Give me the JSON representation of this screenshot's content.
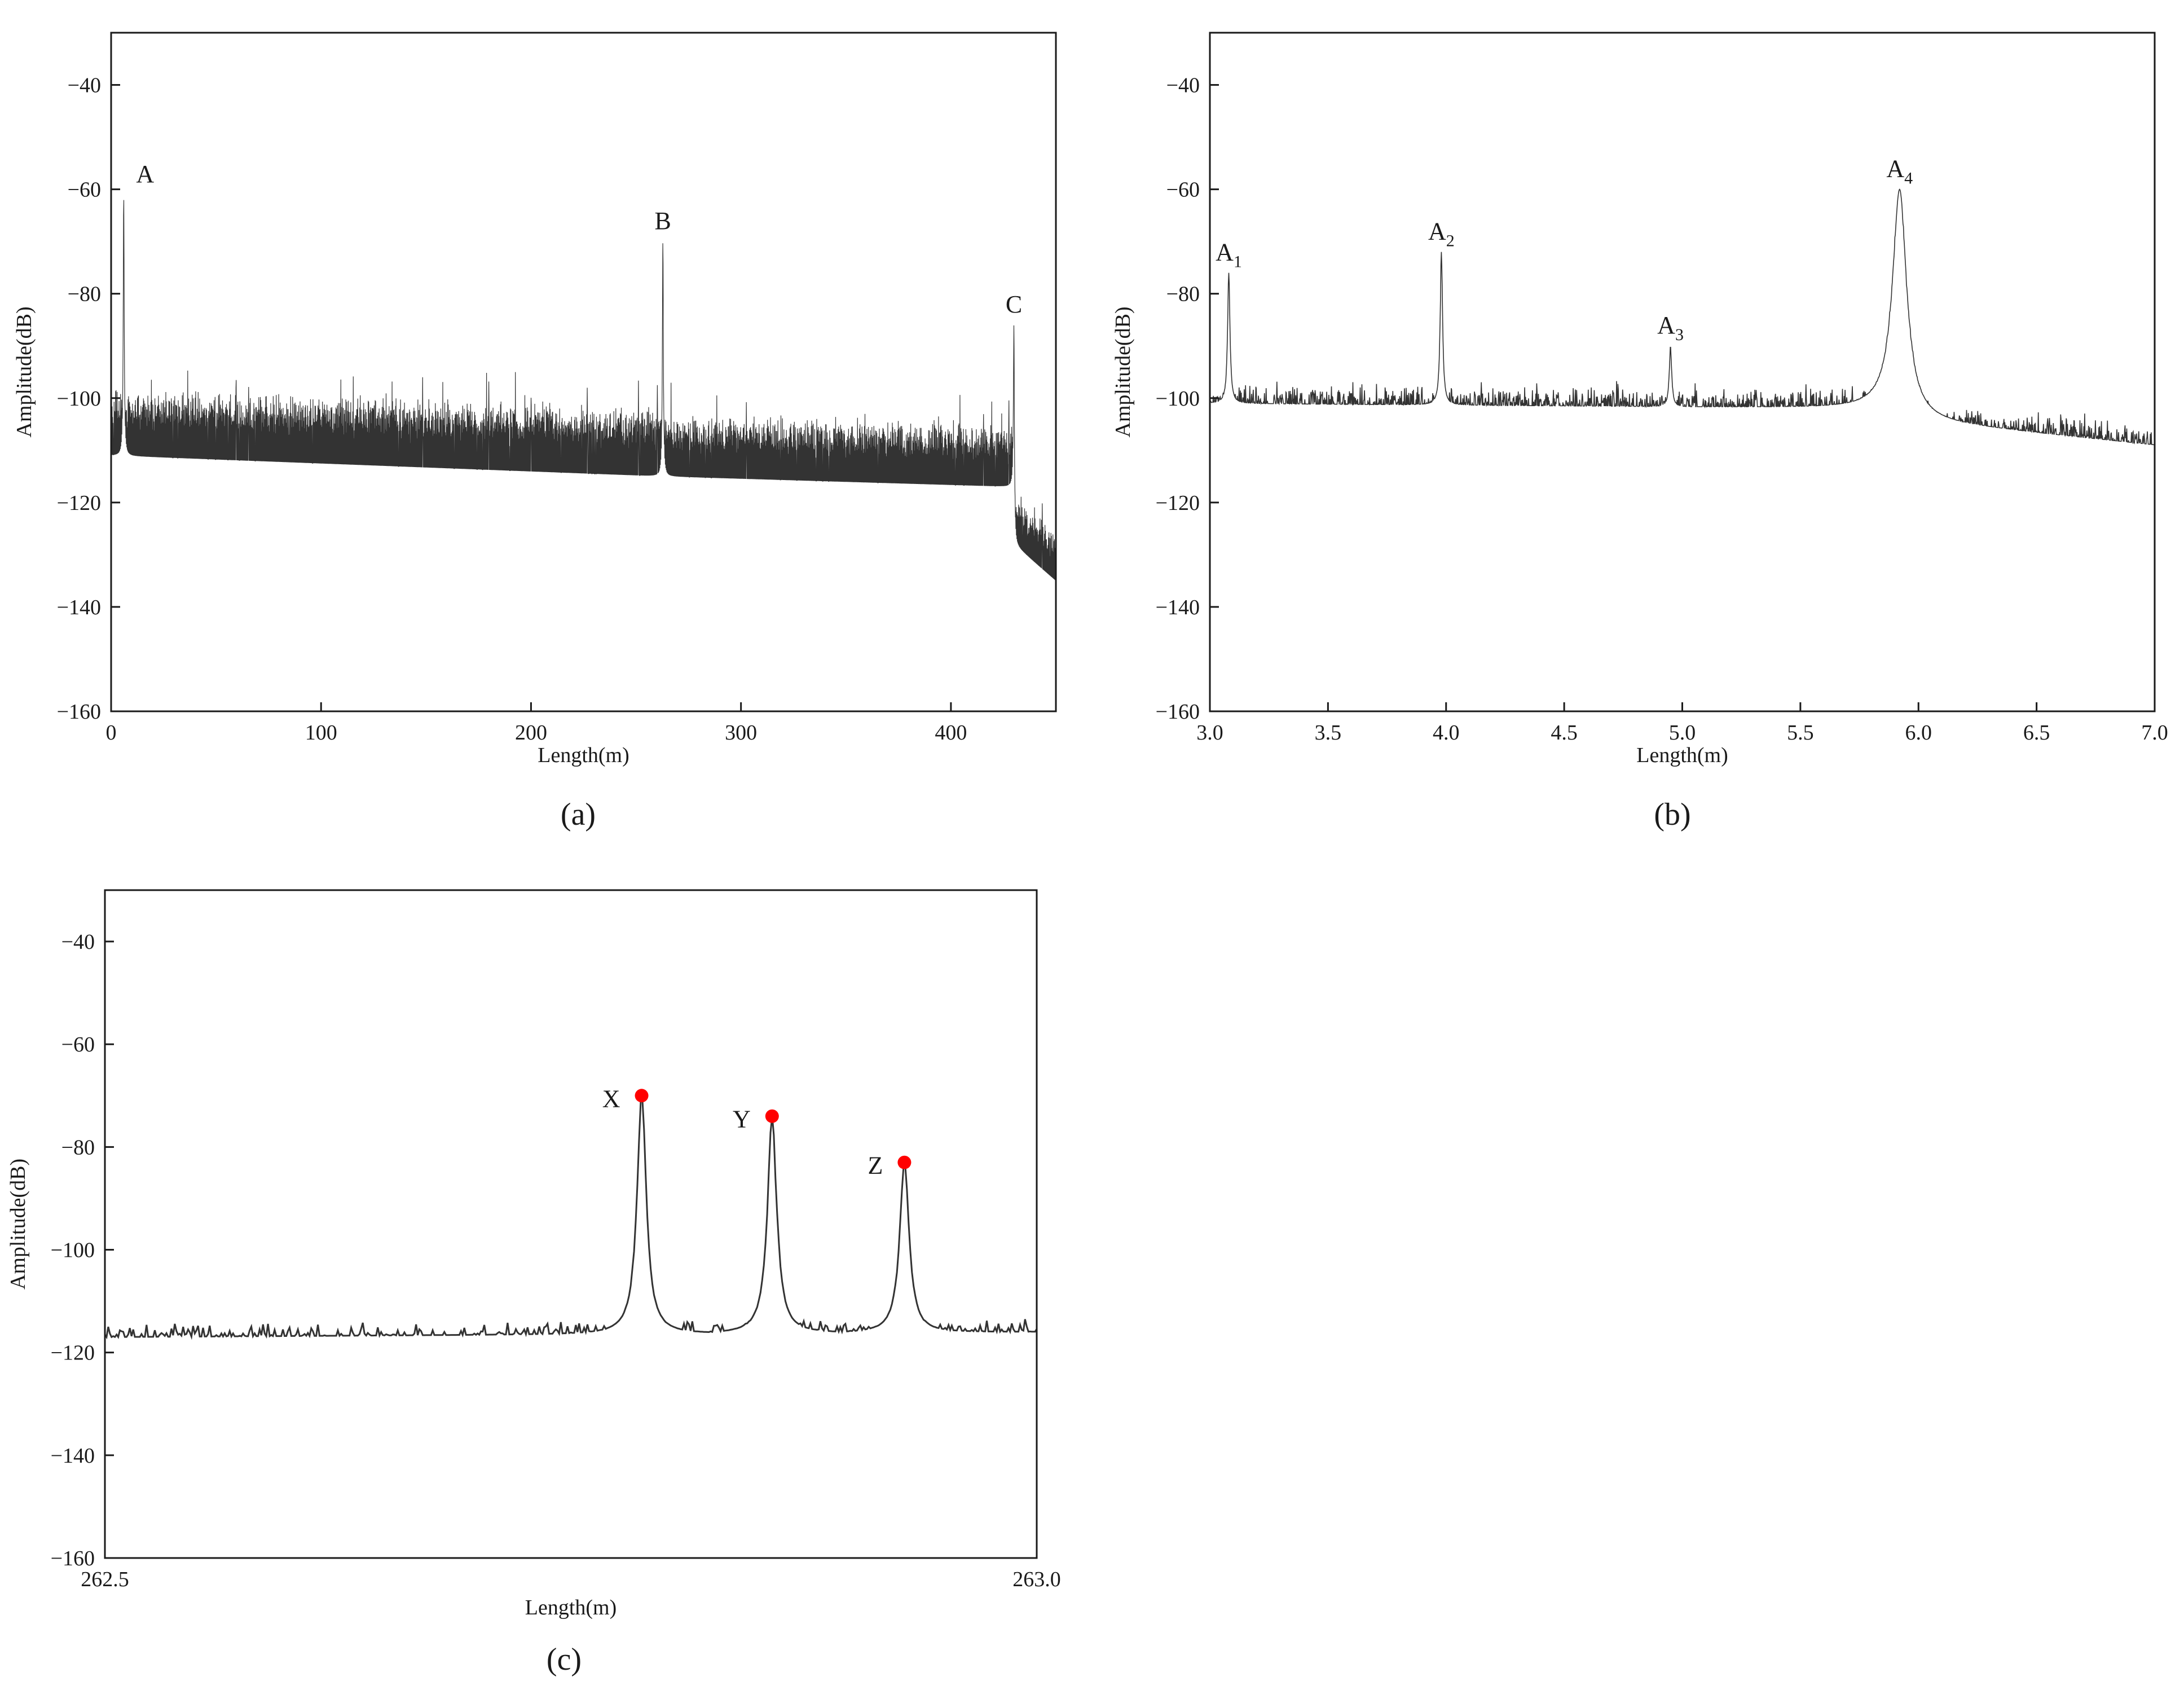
{
  "figure": {
    "panels": [
      {
        "id": "a",
        "caption": "(a)"
      },
      {
        "id": "b",
        "caption": "(b)"
      },
      {
        "id": "c",
        "caption": "(c)"
      }
    ]
  },
  "colors": {
    "trace": "#333333",
    "axis": "#1a1a1a",
    "marker": "#ff0000"
  },
  "chart_data": [
    {
      "id": "a",
      "type": "line",
      "caption": "(a)",
      "xlabel": "Length(m)",
      "ylabel": "Amplitude(dB)",
      "xlim": [
        0,
        450
      ],
      "ylim": [
        -160,
        -30
      ],
      "xticks": [
        0,
        100,
        200,
        300,
        400
      ],
      "xtick_labels": [
        "0",
        "100",
        "200",
        "300",
        "400"
      ],
      "yticks": [
        -40,
        -60,
        -80,
        -100,
        -120,
        -140,
        -160
      ],
      "ytick_labels": [
        "−40",
        "−60",
        "−80",
        "−100",
        "−120",
        "−140",
        "−160"
      ],
      "noise_floor": [
        {
          "x0": 0,
          "x1": 262,
          "mean_start": -111,
          "mean_end": -115,
          "band": 12
        },
        {
          "x0": 262,
          "x1": 430,
          "mean_start": -115,
          "mean_end": -117,
          "band": 11
        },
        {
          "x0": 430,
          "x1": 450,
          "mean_start": -128,
          "mean_end": -135,
          "band": 9
        }
      ],
      "peaks": [
        {
          "label": "A",
          "x": 6,
          "y": -61
        },
        {
          "label": "B",
          "x": 262.8,
          "y": -70
        },
        {
          "label": "C",
          "x": 430,
          "y": -86
        }
      ],
      "grid": false
    },
    {
      "id": "b",
      "type": "line",
      "caption": "(b)",
      "xlabel": "Length(m)",
      "ylabel": "Amplitude(dB)",
      "xlim": [
        3.0,
        7.0
      ],
      "ylim": [
        -160,
        -30
      ],
      "xticks": [
        3.0,
        3.5,
        4.0,
        4.5,
        5.0,
        5.5,
        6.0,
        6.5,
        7.0
      ],
      "xtick_labels": [
        "3.0",
        "3.5",
        "4.0",
        "4.5",
        "5.0",
        "5.5",
        "6.0",
        "6.5",
        "7.0"
      ],
      "yticks": [
        -40,
        -60,
        -80,
        -100,
        -120,
        -140,
        -160
      ],
      "ytick_labels": [
        "−40",
        "−60",
        "−80",
        "−100",
        "−120",
        "−140",
        "−160"
      ],
      "noise_floor": [
        {
          "x0": 3.0,
          "x1": 5.9,
          "mean_start": -101,
          "mean_end": -102,
          "band": 6
        },
        {
          "x0": 5.9,
          "x1": 7.0,
          "mean_start": -104,
          "mean_end": -109,
          "band": 6
        }
      ],
      "peaks": [
        {
          "label": "A",
          "sub": "1",
          "x": 3.08,
          "y": -76
        },
        {
          "label": "A",
          "sub": "2",
          "x": 3.98,
          "y": -72
        },
        {
          "label": "A",
          "sub": "3",
          "x": 4.95,
          "y": -90
        },
        {
          "label": "A",
          "sub": "4",
          "x": 5.92,
          "y": -60
        }
      ],
      "grid": false
    },
    {
      "id": "c",
      "type": "line",
      "caption": "(c)",
      "xlabel": "Length(m)",
      "ylabel": "Amplitude(dB)",
      "xlim": [
        262.5,
        263.0
      ],
      "ylim": [
        -160,
        -30
      ],
      "xticks": [
        262.5,
        263.0
      ],
      "xtick_labels": [
        "262.5",
        "263.0"
      ],
      "yticks": [
        -40,
        -60,
        -80,
        -100,
        -120,
        -140,
        -160
      ],
      "ytick_labels": [
        "−40",
        "−60",
        "−80",
        "−100",
        "−120",
        "−140",
        "−160"
      ],
      "noise_floor": [
        {
          "x0": 262.5,
          "x1": 263.0,
          "mean_start": -117,
          "mean_end": -116,
          "band": 4
        }
      ],
      "peaks": [
        {
          "label": "X",
          "x": 262.788,
          "y": -70
        },
        {
          "label": "Y",
          "x": 262.858,
          "y": -74
        },
        {
          "label": "Z",
          "x": 262.929,
          "y": -83
        }
      ],
      "grid": false
    }
  ]
}
